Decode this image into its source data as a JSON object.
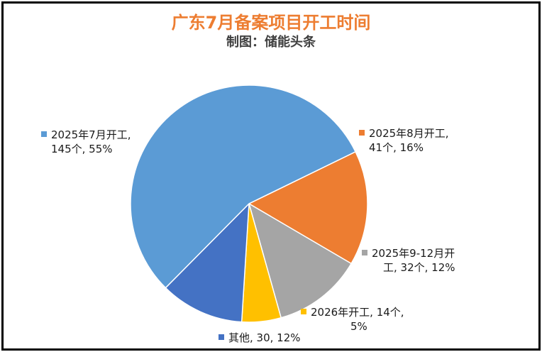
{
  "title": "广东7月备案项目开工时间",
  "subtitle": "制图：储能头条",
  "chart_data": {
    "type": "pie",
    "title": "广东7月备案项目开工时间",
    "slices": [
      {
        "name": "2025年7月开工",
        "value": 145,
        "percent": "55%",
        "color": "#5b9bd5"
      },
      {
        "name": "2025年8月开工",
        "value": 41,
        "percent": "16%",
        "color": "#ed7d31"
      },
      {
        "name": "2025年9-12月开工",
        "value": 32,
        "percent": "12%",
        "color": "#a5a5a5"
      },
      {
        "name": "2026年开工",
        "value": 14,
        "percent": "5%",
        "color": "#ffc000"
      },
      {
        "name": "其他",
        "value": 30,
        "percent": "12%",
        "color": "#4472c4"
      }
    ]
  },
  "labels": {
    "jul": {
      "line1": "2025年7月开工,",
      "line2": "145个, 55%"
    },
    "aug": {
      "line1": "2025年8月开工,",
      "line2": "41个, 16%"
    },
    "sep": {
      "line1": "2025年9-12月开",
      "line2": "工, 32个, 12%"
    },
    "y2026": {
      "line1": "2026年开工, 14个,",
      "line2": "5%"
    },
    "other": {
      "line1": "其他, 30, 12%"
    }
  }
}
